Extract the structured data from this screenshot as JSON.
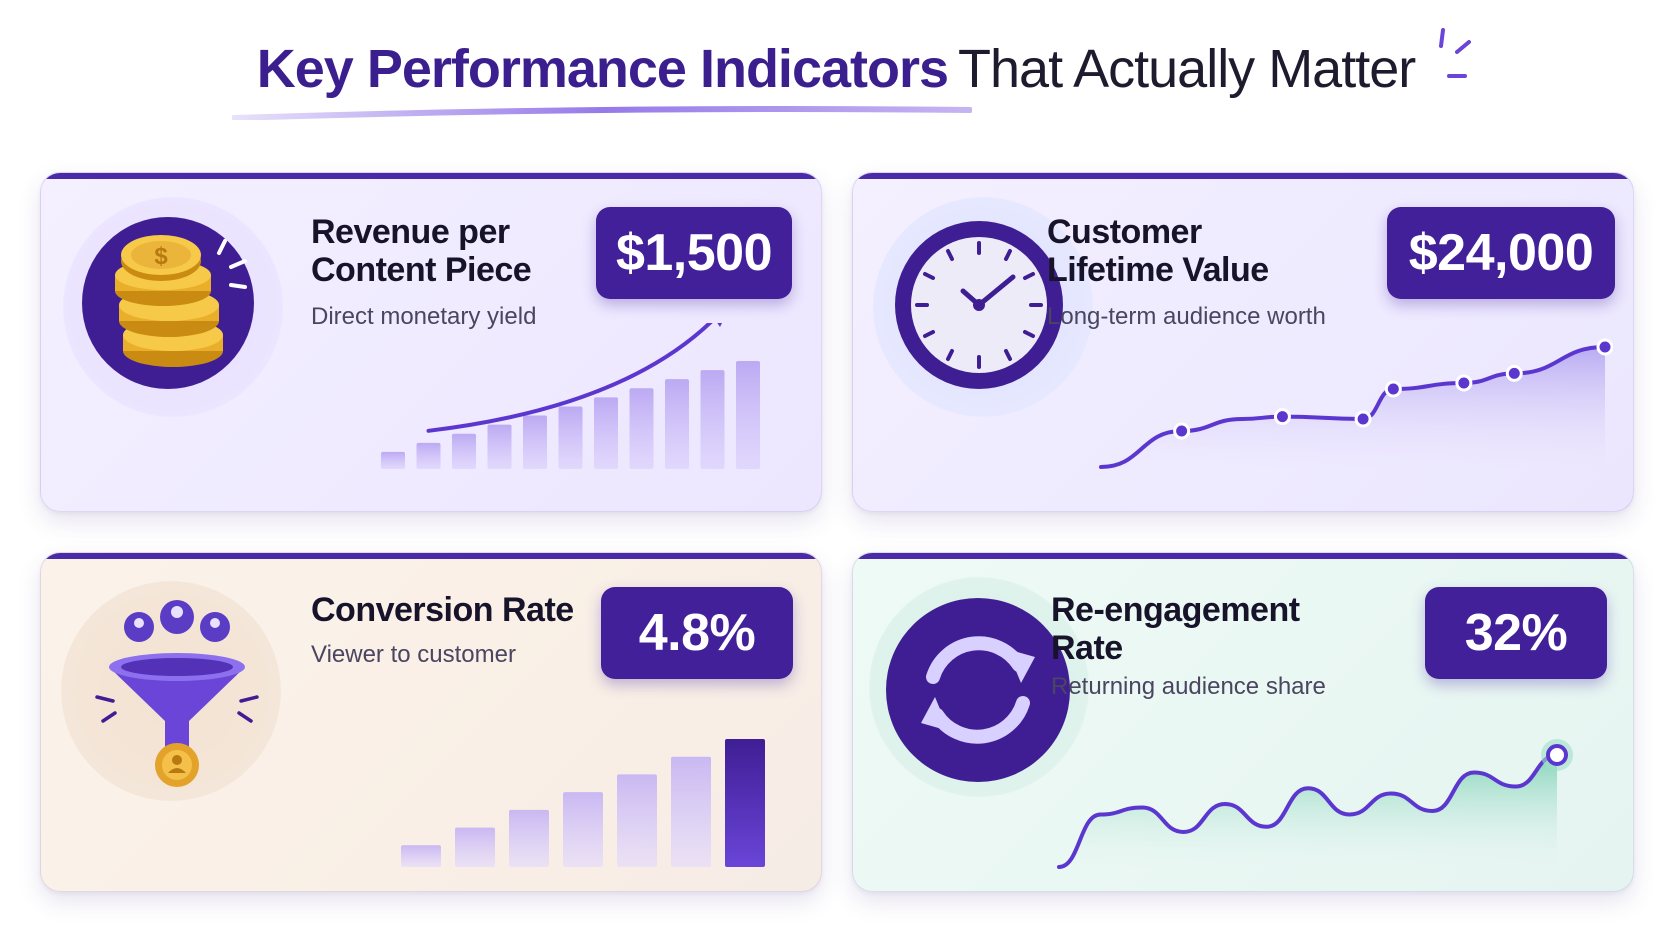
{
  "header": {
    "title_strong": "Key Performance Indicators",
    "title_light": "That Actually Matter"
  },
  "colors": {
    "brand_purple": "#42209a",
    "accent_purple": "#6a45d8",
    "teal_fill": "#7fd1b5"
  },
  "cards": [
    {
      "label": "Revenue per Content Piece",
      "label_line1": "Revenue per",
      "label_line2": "Content Piece",
      "value": "$1,500",
      "subtitle": "Direct monetary yield",
      "icon": "coins-icon"
    },
    {
      "label": "Customer Lifetime Value",
      "label_line1": "Customer",
      "label_line2": "Lifetime Value",
      "value": "$24,000",
      "subtitle": "Long-term audience worth",
      "icon": "clock-icon"
    },
    {
      "label": "Conversion Rate",
      "value": "4.8%",
      "subtitle": "Viewer to customer",
      "icon": "funnel-icon"
    },
    {
      "label": "Re-engagement Rate",
      "label_line1": "Re-engagement",
      "label_line2": "Rate",
      "value": "32%",
      "subtitle": "Returning audience share",
      "icon": "refresh-icon"
    }
  ],
  "chart_data": [
    {
      "type": "bar",
      "values": [
        1,
        2,
        3,
        4,
        5,
        6,
        7,
        8,
        9,
        10,
        11
      ],
      "trend": "upward arrow"
    },
    {
      "type": "area",
      "values": [
        0,
        3,
        4,
        4.2,
        4,
        6.5,
        7,
        7.8,
        10
      ],
      "markers": [
        false,
        true,
        false,
        true,
        true,
        true,
        true,
        true,
        true
      ]
    },
    {
      "type": "bar",
      "values": [
        1,
        2,
        3,
        4,
        5,
        6,
        7
      ]
    },
    {
      "type": "area",
      "values": [
        0,
        3,
        3.4,
        2,
        3.6,
        2.3,
        4.5,
        3,
        4.2,
        3.2,
        5.4,
        4.6,
        6.4
      ]
    }
  ]
}
